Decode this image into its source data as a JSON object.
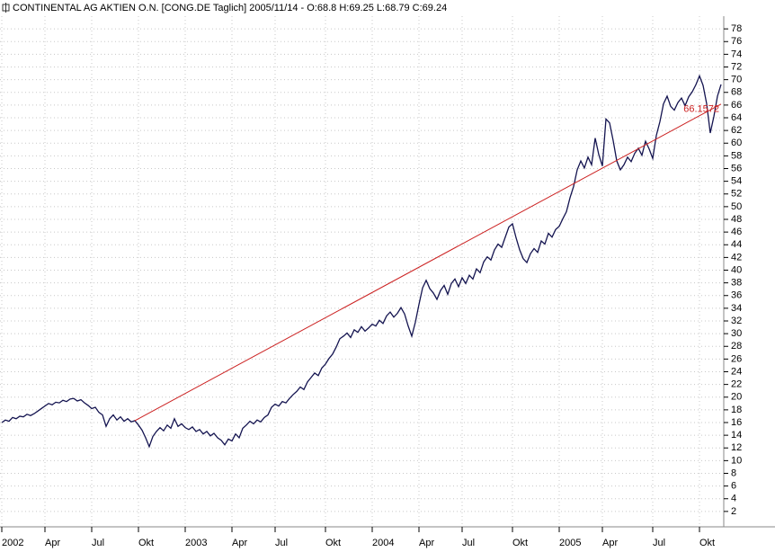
{
  "chart_data": {
    "type": "line",
    "title": "CONTINENTAL AG AKTIEN O.N. [CONG.DE  Taglich] 2005/11/14 - O:68.8 H:69.25 L:68.79 C:69.24",
    "categories": [
      "2002",
      null,
      null,
      null,
      null,
      null,
      null,
      null,
      null,
      null,
      null,
      null,
      "Apr",
      null,
      null,
      null,
      null,
      null,
      null,
      null,
      null,
      null,
      null,
      null,
      null,
      "Jul",
      null,
      null,
      null,
      null,
      null,
      null,
      null,
      null,
      null,
      null,
      null,
      null,
      "Okt",
      null,
      null,
      null,
      null,
      null,
      null,
      null,
      null,
      null,
      null,
      null,
      null,
      "2003",
      null,
      null,
      null,
      null,
      null,
      null,
      null,
      null,
      null,
      null,
      null,
      null,
      "Apr",
      null,
      null,
      null,
      null,
      null,
      null,
      null,
      null,
      null,
      null,
      null,
      "Jul",
      null,
      null,
      null,
      null,
      null,
      null,
      null,
      null,
      null,
      null,
      null,
      null,
      null,
      "Okt",
      null,
      null,
      null,
      null,
      null,
      null,
      null,
      null,
      null,
      null,
      null,
      null,
      "2004",
      null,
      null,
      null,
      null,
      null,
      null,
      null,
      null,
      null,
      null,
      null,
      null,
      "Apr",
      null,
      null,
      null,
      null,
      null,
      null,
      null,
      null,
      null,
      null,
      null,
      "Jul",
      null,
      null,
      null,
      null,
      null,
      null,
      null,
      null,
      null,
      null,
      null,
      null,
      null,
      "Okt",
      null,
      null,
      null,
      null,
      null,
      null,
      null,
      null,
      null,
      null,
      null,
      null,
      "2005",
      null,
      null,
      null,
      null,
      null,
      null,
      null,
      null,
      null,
      null,
      null,
      "Apr",
      null,
      null,
      null,
      null,
      null,
      null,
      null,
      null,
      null,
      null,
      null,
      null,
      null,
      "Jul",
      null,
      null,
      null,
      null,
      null,
      null,
      null,
      null,
      null,
      null,
      null,
      null,
      "Okt",
      null,
      null,
      null,
      null,
      null,
      null
    ],
    "values": [
      16,
      16.4,
      16.2,
      16.8,
      16.6,
      17,
      16.9,
      17.3,
      17.1,
      17.4,
      17.8,
      18.2,
      18.6,
      19,
      18.8,
      19.2,
      19.1,
      19.5,
      19.3,
      19.7,
      19.8,
      19.4,
      19.6,
      19.1,
      18.7,
      18.2,
      18.4,
      17.6,
      17.2,
      15.4,
      16.6,
      17.2,
      16.4,
      16.9,
      16.2,
      16.6,
      16.1,
      16.3,
      15.6,
      14.8,
      13.6,
      12.2,
      13.8,
      14.6,
      15.2,
      14.7,
      15.6,
      15.1,
      16.6,
      15.4,
      15.8,
      15.2,
      14.9,
      15.3,
      14.6,
      14.9,
      14.2,
      14.6,
      13.9,
      14.3,
      13.6,
      13.2,
      12.5,
      13.4,
      13.1,
      14.2,
      13.6,
      15.1,
      15.6,
      16.2,
      15.8,
      16.4,
      16.1,
      16.8,
      17.2,
      18.4,
      18.9,
      18.6,
      19.3,
      19.1,
      19.8,
      20.4,
      20.9,
      21.6,
      21.2,
      22.4,
      23.1,
      23.8,
      23.4,
      24.6,
      25.2,
      26.1,
      26.8,
      27.9,
      29.2,
      29.6,
      30.1,
      29.4,
      30.6,
      30.2,
      31.1,
      30.4,
      30.9,
      31.5,
      31.2,
      32.1,
      31.6,
      32.8,
      33.4,
      32.6,
      33.2,
      34.1,
      33.1,
      31.2,
      29.6,
      31.8,
      34.6,
      37.2,
      38.4,
      37.1,
      36.4,
      35.4,
      36.8,
      37.6,
      36.2,
      37.9,
      38.6,
      37.4,
      38.8,
      37.9,
      39.2,
      38.6,
      40.2,
      39.6,
      41.3,
      42.1,
      41.6,
      43.2,
      44.1,
      43.6,
      45.2,
      46.8,
      47.3,
      45.1,
      43.2,
      41.8,
      41.2,
      42.6,
      43.4,
      42.8,
      44.6,
      44.1,
      45.8,
      45.2,
      46.4,
      46.9,
      48.1,
      49.2,
      51.4,
      53.2,
      55.8,
      57.2,
      56.1,
      57.8,
      56.6,
      60.8,
      58.2,
      56.4,
      63.8,
      63.2,
      60.4,
      57.2,
      55.8,
      56.6,
      57.8,
      57.1,
      58.4,
      59.2,
      58.1,
      60.3,
      59.1,
      57.6,
      61.2,
      63.4,
      66.2,
      67.4,
      65.8,
      65.2,
      66.4,
      67.1,
      65.9,
      67.3,
      68.1,
      69.2,
      70.6,
      69.1,
      66.2,
      61.6,
      64.2,
      67.4,
      69.24
    ],
    "color": "#141450",
    "trendline": {
      "x": [
        37,
        200
      ],
      "values": [
        16.3,
        66.1572
      ],
      "color": "#cc2222"
    },
    "ylim": [
      0,
      80
    ],
    "yticks": [
      2,
      4,
      6,
      8,
      10,
      12,
      14,
      16,
      18,
      20,
      22,
      24,
      26,
      28,
      30,
      32,
      34,
      36,
      38,
      40,
      42,
      44,
      46,
      48,
      50,
      52,
      54,
      56,
      58,
      60,
      62,
      64,
      66,
      68,
      70,
      72,
      74,
      76,
      78
    ],
    "grid": true
  }
}
